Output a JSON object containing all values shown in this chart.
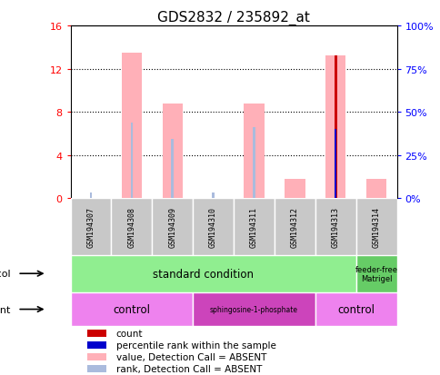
{
  "title": "GDS2832 / 235892_at",
  "samples": [
    "GSM194307",
    "GSM194308",
    "GSM194309",
    "GSM194310",
    "GSM194311",
    "GSM194312",
    "GSM194313",
    "GSM194314"
  ],
  "ylim_left": [
    0,
    16
  ],
  "ylim_right": [
    0,
    100
  ],
  "yticks_left": [
    0,
    4,
    8,
    12,
    16
  ],
  "yticks_right": [
    0,
    25,
    50,
    75,
    100
  ],
  "ytick_labels_left": [
    "0",
    "4",
    "8",
    "12",
    "16"
  ],
  "ytick_labels_right": [
    "0%",
    "25%",
    "50%",
    "75%",
    "100%"
  ],
  "pink_bars": [
    0.0,
    13.5,
    8.8,
    0.0,
    8.8,
    1.8,
    13.2,
    1.8
  ],
  "light_blue_bars": [
    0.5,
    7.0,
    5.5,
    0.5,
    6.6,
    0.0,
    0.0,
    0.0
  ],
  "red_bars": [
    0.0,
    0.0,
    0.0,
    0.0,
    0.0,
    0.0,
    13.2,
    0.0
  ],
  "dark_blue_bars": [
    0.0,
    0.0,
    0.0,
    0.0,
    0.0,
    0.0,
    6.4,
    0.0
  ],
  "pink_color": "#FFB0B8",
  "light_blue_color": "#AABBDD",
  "red_color": "#CC0000",
  "dark_blue_color": "#0000CC",
  "green_light": "#90EE90",
  "green_dark": "#66CC66",
  "violet_light": "#EE82EE",
  "violet_dark": "#CC44BB",
  "growth_protocol_labels": [
    "standard condition",
    "feeder-free\nMatrigel"
  ],
  "agent_labels": [
    "control",
    "sphingosine-1-phosphate",
    "control"
  ],
  "legend_items": [
    [
      "#CC0000",
      "count"
    ],
    [
      "#0000CC",
      "percentile rank within the sample"
    ],
    [
      "#FFB0B8",
      "value, Detection Call = ABSENT"
    ],
    [
      "#AABBDD",
      "rank, Detection Call = ABSENT"
    ]
  ]
}
